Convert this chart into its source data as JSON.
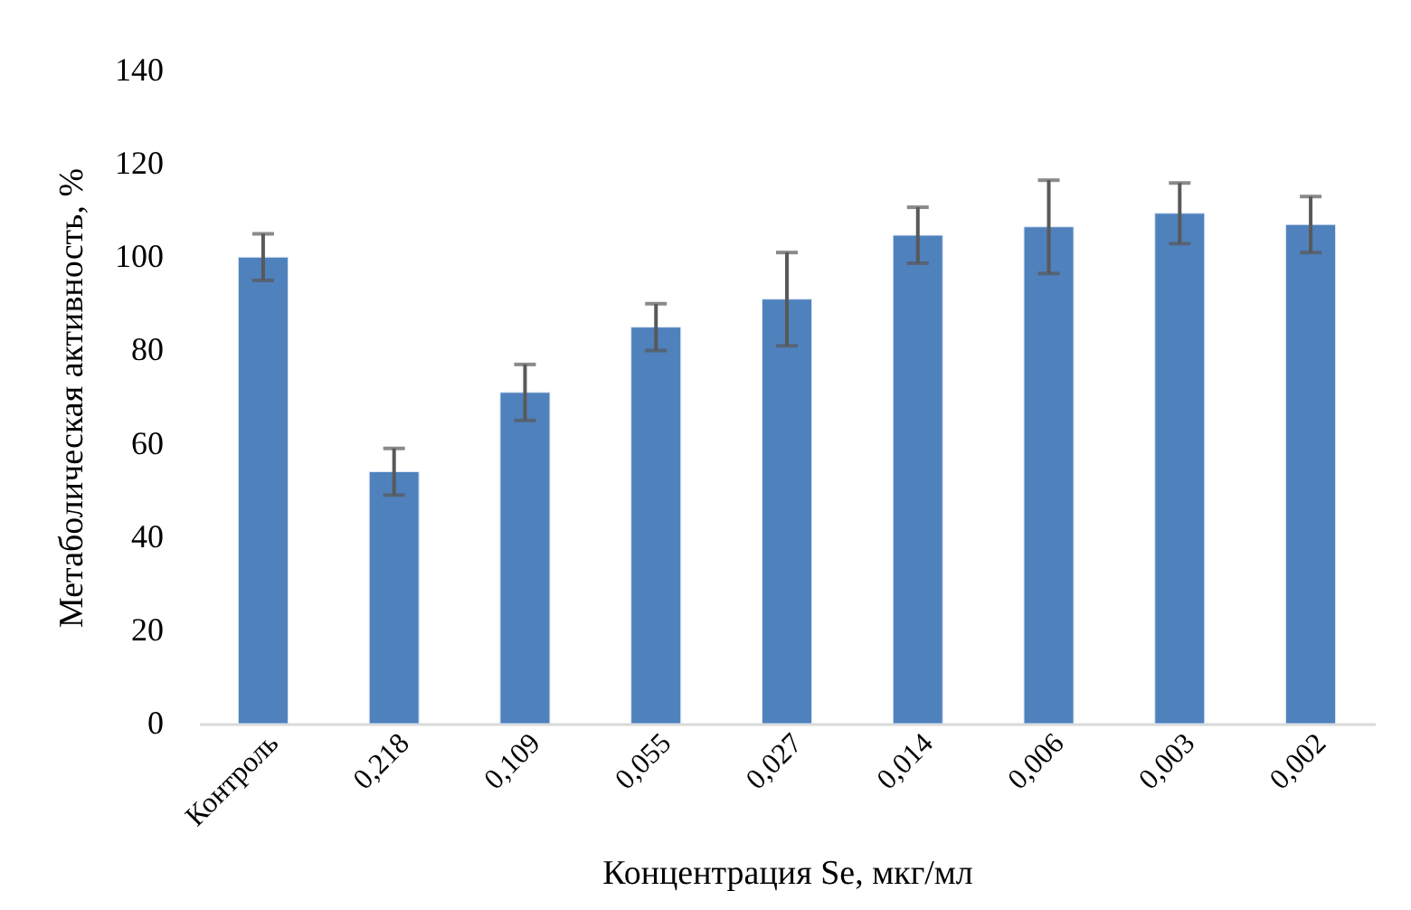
{
  "chart_data": {
    "type": "bar",
    "xlabel": "Концентрация Se, мкг/мл",
    "ylabel": "Метаболическая активность, %",
    "categories": [
      "Контроль",
      "0,218",
      "0,109",
      "0,055",
      "0,027",
      "0,014",
      "0,006",
      "0,003",
      "0,002"
    ],
    "values": [
      100,
      54,
      71,
      85,
      91,
      104.7,
      106.5,
      109.4,
      107
    ],
    "errors": [
      5,
      5,
      6,
      5,
      10,
      6,
      10,
      6.5,
      6
    ],
    "color": "#4f81bd",
    "ylim": [
      0,
      140
    ],
    "yticks": [
      0,
      20,
      40,
      60,
      80,
      100,
      120,
      140
    ],
    "grid": false
  }
}
